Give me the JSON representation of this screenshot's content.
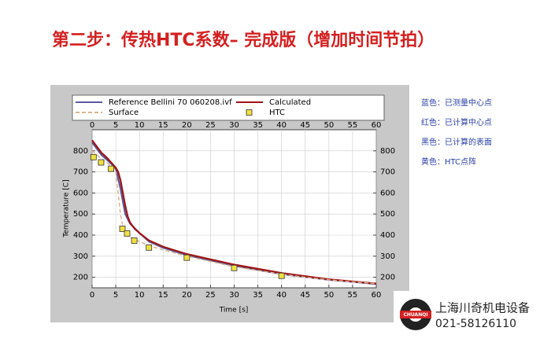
{
  "slide": {
    "title": "第二步：传热HTC系数– 完成版（增加时间节拍）",
    "notes": [
      "蓝色：已测量中心点",
      "红色：已计算中心点",
      "黑色：已计算的表面",
      "黄色：HTC点阵"
    ],
    "logo": {
      "badge": "CHUANQI",
      "company": "上海川奇机电设备",
      "phone": "021-58126110"
    }
  },
  "chart_data": {
    "type": "line",
    "xlabel": "Time [s]",
    "ylabel": "Temperature [C]",
    "xlim": [
      0,
      60
    ],
    "xticks": [
      0,
      5,
      10,
      15,
      20,
      25,
      30,
      35,
      40,
      45,
      50,
      55,
      60
    ],
    "ylim": [
      150,
      900
    ],
    "yticks": [
      200,
      300,
      400,
      500,
      600,
      700,
      800
    ],
    "y2lim": [
      150,
      900
    ],
    "y2ticks": [
      200,
      300,
      400,
      500,
      600,
      700,
      800
    ],
    "grid": true,
    "series": [
      {
        "name": "Reference Bellini 70 060208.ivf",
        "type": "line",
        "color": "#5a5aa0",
        "x": [
          0,
          2,
          4,
          5,
          6,
          7,
          8,
          10,
          12,
          15,
          20,
          30,
          40,
          50,
          60
        ],
        "values": [
          840,
          780,
          740,
          715,
          620,
          500,
          455,
          410,
          370,
          340,
          305,
          255,
          215,
          188,
          168
        ]
      },
      {
        "name": "Calculated",
        "type": "line",
        "color": "#a01414",
        "x": [
          0,
          1,
          2,
          3,
          4,
          5,
          5.5,
          6,
          6.5,
          7,
          7.5,
          8,
          9,
          10,
          12,
          15,
          20,
          25,
          30,
          35,
          40,
          45,
          50,
          55,
          60
        ],
        "values": [
          850,
          820,
          790,
          770,
          745,
          720,
          700,
          660,
          600,
          540,
          490,
          460,
          430,
          410,
          375,
          345,
          310,
          285,
          260,
          240,
          220,
          205,
          190,
          180,
          170
        ]
      },
      {
        "name": "Surface",
        "type": "line",
        "style": "dashed",
        "color": "#d8b48c",
        "x": [
          0,
          2,
          4,
          5,
          5.5,
          6,
          6.5,
          7,
          8,
          10,
          12,
          15,
          20,
          25,
          30,
          35,
          40,
          45,
          50,
          55,
          60
        ],
        "values": [
          800,
          760,
          730,
          700,
          600,
          500,
          440,
          410,
          390,
          370,
          350,
          330,
          300,
          275,
          250,
          232,
          215,
          200,
          188,
          178,
          170
        ]
      },
      {
        "name": "HTC",
        "type": "scatter",
        "color": "#f0e040",
        "x": [
          0.3,
          1.9,
          4,
          6.4,
          7.4,
          8.9,
          12,
          20,
          30,
          40
        ],
        "values": [
          770,
          745,
          715,
          430,
          408,
          374,
          341,
          293,
          244,
          207
        ]
      }
    ]
  }
}
